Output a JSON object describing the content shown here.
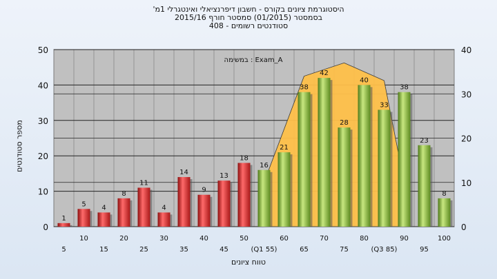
{
  "header": {
    "line1": "'היסטוגרמת ציונים בקורס - חשבון דיפרנציאלי ואינטגרלי 1מ",
    "line2": "בסמסטר   (01/2015)  סמסטר חורף  2015/16",
    "line3": "סטודנטים רשומים - 408"
  },
  "colors": {
    "fail_bar": "#d42a2a",
    "pass_bar": "#7faa36",
    "distribution_area": "#ffc04a",
    "plot_background": "#c0c0c0"
  },
  "chart_data": {
    "type": "bar",
    "title": "'היסטוגרמת ציונים בקורס - חשבון דיפרנציאלי ואינטגרלי 1מ",
    "xlabel": "טווח ציונים",
    "ylabel": "מספר סטודנטים",
    "legend": "במשימה : Exam_A",
    "ylim": [
      0,
      50
    ],
    "y2lim": [
      0,
      40
    ],
    "grid": true,
    "y_ticks": [
      0,
      10,
      20,
      30,
      40,
      50
    ],
    "y2_ticks": [
      0,
      10,
      20,
      30,
      40
    ],
    "categories": [
      "5",
      "10",
      "15",
      "20",
      "25",
      "30",
      "35",
      "40",
      "45",
      "50",
      "(Q1 55)",
      "60",
      "65",
      "70",
      "75",
      "80",
      "(Q3 85)",
      "90",
      "95",
      "100"
    ],
    "series": [
      {
        "values": [
          1,
          5,
          4,
          8,
          11,
          4,
          14,
          9,
          13,
          18,
          16,
          21,
          38,
          42,
          28,
          40,
          33,
          38,
          23,
          8
        ]
      }
    ],
    "bar_group": [
      "fail",
      "fail",
      "fail",
      "fail",
      "fail",
      "fail",
      "fail",
      "fail",
      "fail",
      "fail",
      "pass",
      "pass",
      "pass",
      "pass",
      "pass",
      "pass",
      "pass",
      "pass",
      "pass",
      "pass"
    ],
    "area": {
      "x": [
        "(Q1 55)",
        "65",
        "75",
        "(Q3 85)",
        "90"
      ],
      "y2": [
        10,
        34,
        37,
        33,
        10
      ]
    }
  }
}
